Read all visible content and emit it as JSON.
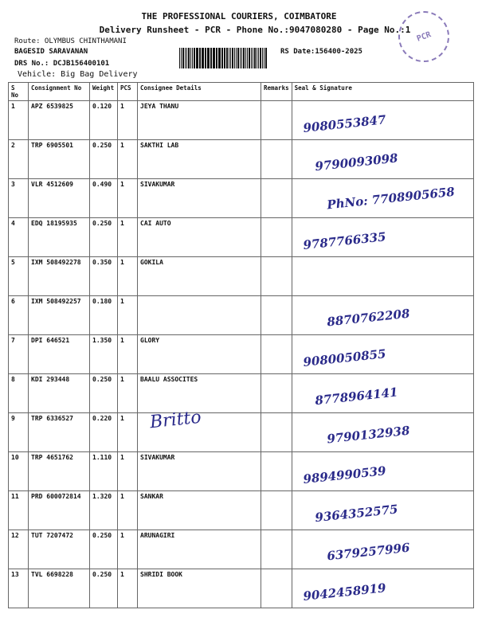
{
  "header": {
    "title": "THE PROFESSIONAL COURIERS, COIMBATORE",
    "subtitle": "Delivery Runsheet - PCR - Phone No.:9047080280 - Page No.:1",
    "route": "Route: OLYMBUS CHINTHAMANI",
    "staff": "BAGESID SARAVANAN",
    "drs_no": "DRS No.: DCJB156400101",
    "vehicle": "Vehicle: Big Bag Delivery",
    "rs_date": "RS Date:156400-2025",
    "stamp_text": "PCR"
  },
  "table": {
    "columns": [
      "S No",
      "Consignment No",
      "Weight",
      "PCS",
      "Consignee Details",
      "Remarks",
      "Seal & Signature"
    ],
    "rows": [
      {
        "sno": "1",
        "cno": "APZ 6539825",
        "weight": "0.120",
        "pcs": "1",
        "consignee": "JEYA THANU",
        "sign": "9080553847"
      },
      {
        "sno": "2",
        "cno": "TRP 6905501",
        "weight": "0.250",
        "pcs": "1",
        "consignee": "SAKTHI LAB",
        "sign": "9790093098"
      },
      {
        "sno": "3",
        "cno": "VLR 4512609",
        "weight": "0.490",
        "pcs": "1",
        "consignee": "SIVAKUMAR",
        "sign": "PhNo: 7708905658"
      },
      {
        "sno": "4",
        "cno": "EDQ 18195935",
        "weight": "0.250",
        "pcs": "1",
        "consignee": "CAI AUTO",
        "sign": "9787766335"
      },
      {
        "sno": "5",
        "cno": "IXM 508492278",
        "weight": "0.350",
        "pcs": "1",
        "consignee": "GOKILA",
        "sign": ""
      },
      {
        "sno": "6",
        "cno": "IXM 508492257",
        "weight": "0.180",
        "pcs": "1",
        "consignee": "",
        "sign": "8870762208"
      },
      {
        "sno": "7",
        "cno": "DPI 646521",
        "weight": "1.350",
        "pcs": "1",
        "consignee": "GLORY",
        "sign": "9080050855"
      },
      {
        "sno": "8",
        "cno": "KDI 293448",
        "weight": "0.250",
        "pcs": "1",
        "consignee": "BAALU ASSOCITES",
        "sign": "8778964141"
      },
      {
        "sno": "9",
        "cno": "TRP 6336527",
        "weight": "0.220",
        "pcs": "1",
        "consignee": "",
        "sign": "9790132938"
      },
      {
        "sno": "10",
        "cno": "TRP 4651762",
        "weight": "1.110",
        "pcs": "1",
        "consignee": "SIVAKUMAR",
        "sign": "9894990539"
      },
      {
        "sno": "11",
        "cno": "PRD 600072814",
        "weight": "1.320",
        "pcs": "1",
        "consignee": "SANKAR",
        "sign": "9364352575"
      },
      {
        "sno": "12",
        "cno": "TUT 7207472",
        "weight": "0.250",
        "pcs": "1",
        "consignee": "ARUNAGIRI",
        "sign": "6379257996"
      },
      {
        "sno": "13",
        "cno": "TVL 6698228",
        "weight": "0.250",
        "pcs": "1",
        "consignee": "SHRIDI BOOK",
        "sign": "9042458919"
      }
    ]
  },
  "handwriting": {
    "row9_consignee": "Britto"
  }
}
